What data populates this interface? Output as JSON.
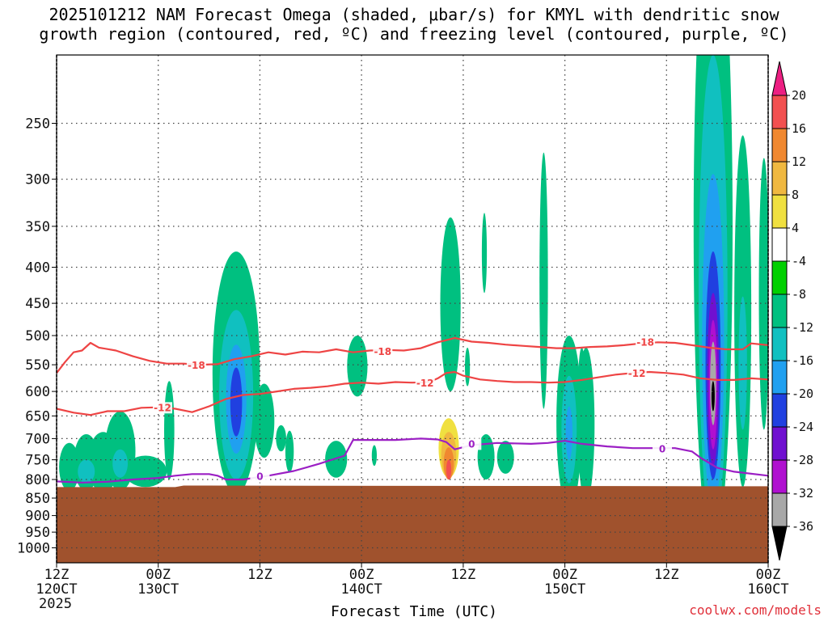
{
  "title": {
    "line1": "2025101212 NAM Forecast Omega (shaded, μbar/s) for KMYL with dendritic snow",
    "line2": "growth region (contoured, red, ºC) and freezing level (contoured, purple, ºC)"
  },
  "xlabel": "Forecast Time (UTC)",
  "credit": "coolwx.com/models",
  "colors": {
    "dgz_contour": "#ee4444",
    "freezing_contour": "#9b1fc4",
    "ground": "#a0522d"
  },
  "chart_data": {
    "type": "heatmap",
    "y_axis": {
      "quantity": "pressure (mb)",
      "scale": "log",
      "inverted": true,
      "range": [
        200,
        1050
      ],
      "ticks": [
        250,
        300,
        350,
        400,
        450,
        500,
        550,
        600,
        650,
        700,
        750,
        800,
        850,
        900,
        950,
        1000
      ],
      "grid": true
    },
    "x_axis": {
      "range_hours": [
        0,
        84
      ],
      "ticks": [
        {
          "hour": 0,
          "line1": "12Z",
          "line2": "120CT",
          "line3": "2025"
        },
        {
          "hour": 12,
          "line1": "00Z",
          "line2": "130CT",
          "line3": ""
        },
        {
          "hour": 24,
          "line1": "12Z",
          "line2": "",
          "line3": ""
        },
        {
          "hour": 36,
          "line1": "00Z",
          "line2": "140CT",
          "line3": ""
        },
        {
          "hour": 48,
          "line1": "12Z",
          "line2": "",
          "line3": ""
        },
        {
          "hour": 60,
          "line1": "00Z",
          "line2": "150CT",
          "line3": ""
        },
        {
          "hour": 72,
          "line1": "12Z",
          "line2": "",
          "line3": ""
        },
        {
          "hour": 84,
          "line1": "00Z",
          "line2": "160CT",
          "line3": ""
        }
      ],
      "grid": true
    },
    "colorbar": {
      "labels": [
        "20",
        "16",
        "12",
        "8",
        "4",
        "-4",
        "-8",
        "-12",
        "-16",
        "-20",
        "-24",
        "-28",
        "-32",
        "-36"
      ],
      "levels": [
        24,
        20,
        16,
        12,
        8,
        4,
        -4,
        -8,
        -12,
        -16,
        -20,
        -24,
        -28,
        -32,
        -36,
        -40
      ],
      "colors": [
        "#ec1f82",
        "#f25050",
        "#f08830",
        "#f0b840",
        "#f0e040",
        "#ffffff",
        "#00d000",
        "#00c080",
        "#10c0c0",
        "#20a0f0",
        "#2040e0",
        "#7010d0",
        "#b010d0",
        "#a8a8a8",
        "#000000"
      ]
    },
    "surface_pressure": [
      {
        "hour": 0,
        "p": 820
      },
      {
        "hour": 14,
        "p": 820
      },
      {
        "hour": 15,
        "p": 816
      },
      {
        "hour": 84,
        "p": 818
      }
    ],
    "contours": [
      {
        "level": "-18",
        "color": "dgz",
        "label_positions": [
          {
            "hour": 16.5,
            "p": 551
          },
          {
            "hour": 38.5,
            "p": 527
          },
          {
            "hour": 69.5,
            "p": 511
          }
        ],
        "points": [
          [
            0,
            565
          ],
          [
            1,
            545
          ],
          [
            2,
            528
          ],
          [
            3,
            525
          ],
          [
            4,
            512
          ],
          [
            5,
            520
          ],
          [
            7,
            525
          ],
          [
            9,
            535
          ],
          [
            11,
            543
          ],
          [
            13,
            548
          ],
          [
            15,
            548
          ],
          [
            17,
            550
          ],
          [
            19,
            549
          ],
          [
            21,
            540
          ],
          [
            23,
            535
          ],
          [
            25,
            528
          ],
          [
            27,
            532
          ],
          [
            29,
            527
          ],
          [
            31,
            528
          ],
          [
            33,
            523
          ],
          [
            35,
            528
          ],
          [
            37,
            525
          ],
          [
            39,
            524
          ],
          [
            41,
            525
          ],
          [
            43,
            521
          ],
          [
            45,
            511
          ],
          [
            47,
            504
          ],
          [
            49,
            510
          ],
          [
            51,
            512
          ],
          [
            53,
            515
          ],
          [
            55,
            517
          ],
          [
            57,
            519
          ],
          [
            59,
            521
          ],
          [
            61,
            521
          ],
          [
            63,
            519
          ],
          [
            65,
            518
          ],
          [
            67,
            516
          ],
          [
            69,
            513
          ],
          [
            71,
            511
          ],
          [
            73,
            512
          ],
          [
            75,
            516
          ],
          [
            77,
            520
          ],
          [
            79,
            523
          ],
          [
            81,
            523
          ],
          [
            82,
            513
          ],
          [
            84,
            516
          ]
        ]
      },
      {
        "level": "-12",
        "color": "dgz",
        "label_positions": [
          {
            "hour": 12.5,
            "p": 633
          },
          {
            "hour": 43.5,
            "p": 584
          },
          {
            "hour": 68.5,
            "p": 566
          }
        ],
        "points": [
          [
            0,
            635
          ],
          [
            2,
            643
          ],
          [
            4,
            648
          ],
          [
            6,
            640
          ],
          [
            8,
            640
          ],
          [
            10,
            633
          ],
          [
            12,
            632
          ],
          [
            14,
            635
          ],
          [
            16,
            642
          ],
          [
            18,
            630
          ],
          [
            20,
            615
          ],
          [
            22,
            607
          ],
          [
            24,
            605
          ],
          [
            26,
            600
          ],
          [
            28,
            595
          ],
          [
            30,
            593
          ],
          [
            32,
            590
          ],
          [
            34,
            585
          ],
          [
            36,
            583
          ],
          [
            38,
            585
          ],
          [
            40,
            582
          ],
          [
            42,
            583
          ],
          [
            44,
            582
          ],
          [
            45,
            575
          ],
          [
            46,
            565
          ],
          [
            47,
            563
          ],
          [
            48,
            570
          ],
          [
            50,
            577
          ],
          [
            52,
            580
          ],
          [
            54,
            582
          ],
          [
            56,
            582
          ],
          [
            58,
            583
          ],
          [
            60,
            582
          ],
          [
            62,
            578
          ],
          [
            64,
            573
          ],
          [
            66,
            568
          ],
          [
            68,
            565
          ],
          [
            70,
            563
          ],
          [
            72,
            565
          ],
          [
            74,
            568
          ],
          [
            76,
            575
          ],
          [
            78,
            578
          ],
          [
            80,
            578
          ],
          [
            82,
            575
          ],
          [
            84,
            577
          ]
        ]
      },
      {
        "level": "0",
        "color": "freezing",
        "label_positions": [
          {
            "hour": 24,
            "p": 793
          },
          {
            "hour": 49,
            "p": 713
          },
          {
            "hour": 71.5,
            "p": 725
          }
        ],
        "points": [
          [
            0,
            805
          ],
          [
            3,
            808
          ],
          [
            6,
            806
          ],
          [
            9,
            800
          ],
          [
            12,
            796
          ],
          [
            14,
            790
          ],
          [
            16,
            786
          ],
          [
            18,
            786
          ],
          [
            19,
            790
          ],
          [
            20,
            800
          ],
          [
            22,
            800
          ],
          [
            25,
            790
          ],
          [
            28,
            778
          ],
          [
            31,
            760
          ],
          [
            34,
            740
          ],
          [
            35,
            703
          ],
          [
            37,
            703
          ],
          [
            40,
            703
          ],
          [
            43,
            700
          ],
          [
            45,
            702
          ],
          [
            46,
            708
          ],
          [
            47,
            725
          ],
          [
            48,
            720
          ],
          [
            49,
            715
          ],
          [
            52,
            710
          ],
          [
            56,
            712
          ],
          [
            58,
            710
          ],
          [
            60,
            705
          ],
          [
            62,
            712
          ],
          [
            65,
            718
          ],
          [
            68,
            722
          ],
          [
            71,
            722
          ],
          [
            73,
            722
          ],
          [
            75,
            730
          ],
          [
            76,
            745
          ],
          [
            78,
            770
          ],
          [
            80,
            780
          ],
          [
            84,
            790
          ]
        ]
      }
    ],
    "omega_features": [
      {
        "value": -8,
        "hour": 1.5,
        "p": 770,
        "dh": 1.2,
        "dp": 60
      },
      {
        "value": -8,
        "hour": 3.5,
        "p": 760,
        "dh": 1.5,
        "dp": 70
      },
      {
        "value": -8,
        "hour": 5.5,
        "p": 760,
        "dh": 1.8,
        "dp": 75
      },
      {
        "value": -8,
        "hour": 7.5,
        "p": 735,
        "dh": 1.8,
        "dp": 95
      },
      {
        "value": -8,
        "hour": 10.5,
        "p": 780,
        "dh": 2.5,
        "dp": 40
      },
      {
        "value": -12,
        "hour": 3.5,
        "p": 780,
        "dh": 1.0,
        "dp": 30
      },
      {
        "value": -12,
        "hour": 7.5,
        "p": 760,
        "dh": 0.9,
        "dp": 35
      },
      {
        "value": -8,
        "hour": 13.3,
        "p": 690,
        "dh": 0.6,
        "dp": 110
      },
      {
        "value": 4,
        "hour": 16.5,
        "p": 690,
        "dh": 1.0,
        "dp": 60
      },
      {
        "value": -8,
        "hour": 21.2,
        "p": 610,
        "dh": 2.8,
        "dp": 230
      },
      {
        "value": -12,
        "hour": 21.2,
        "p": 630,
        "dh": 2.0,
        "dp": 170
      },
      {
        "value": -16,
        "hour": 21.2,
        "p": 625,
        "dh": 1.2,
        "dp": 110
      },
      {
        "value": -20,
        "hour": 21.2,
        "p": 625,
        "dh": 0.7,
        "dp": 70
      },
      {
        "value": -8,
        "hour": 24.5,
        "p": 665,
        "dh": 1.2,
        "dp": 80
      },
      {
        "value": -8,
        "hour": 26.5,
        "p": 700,
        "dh": 0.6,
        "dp": 30
      },
      {
        "value": -8,
        "hour": 27.5,
        "p": 732,
        "dh": 0.5,
        "dp": 50
      },
      {
        "value": 4,
        "hour": 30.3,
        "p": 730,
        "dh": 0.5,
        "dp": 40
      },
      {
        "value": 4,
        "hour": 24.5,
        "p": 805,
        "dh": 1.5,
        "dp": 12
      },
      {
        "value": -8,
        "hour": 33.0,
        "p": 750,
        "dh": 1.3,
        "dp": 45
      },
      {
        "value": -8,
        "hour": 35.5,
        "p": 555,
        "dh": 1.2,
        "dp": 55
      },
      {
        "value": 4,
        "hour": 36.0,
        "p": 715,
        "dh": 0.3,
        "dp": 25
      },
      {
        "value": 4,
        "hour": 38.0,
        "p": 795,
        "dh": 3.5,
        "dp": 25
      },
      {
        "value": -8,
        "hour": 37.5,
        "p": 740,
        "dh": 0.3,
        "dp": 25
      },
      {
        "value": 4,
        "hour": 41.7,
        "p": 440,
        "dh": 0.4,
        "dp": 60
      },
      {
        "value": 4,
        "hour": 44.0,
        "p": 795,
        "dh": 8.0,
        "dp": 20
      },
      {
        "value": -8,
        "hour": 46.5,
        "p": 470,
        "dh": 1.2,
        "dp": 130
      },
      {
        "value": 4,
        "hour": 46.3,
        "p": 710,
        "dh": 1.6,
        "dp": 90
      },
      {
        "value": 8,
        "hour": 46.3,
        "p": 725,
        "dh": 1.2,
        "dp": 70
      },
      {
        "value": 12,
        "hour": 46.3,
        "p": 740,
        "dh": 0.9,
        "dp": 55
      },
      {
        "value": 16,
        "hour": 46.3,
        "p": 760,
        "dh": 0.6,
        "dp": 40
      },
      {
        "value": 20,
        "hour": 46.3,
        "p": 775,
        "dh": 0.3,
        "dp": 25
      },
      {
        "value": -8,
        "hour": 48.5,
        "p": 555,
        "dh": 0.3,
        "dp": 35
      },
      {
        "value": -8,
        "hour": 50.5,
        "p": 385,
        "dh": 0.3,
        "dp": 50
      },
      {
        "value": 4,
        "hour": 46.0,
        "p": 615,
        "dh": 0.3,
        "dp": 25
      },
      {
        "value": -8,
        "hour": 50.7,
        "p": 745,
        "dh": 1.0,
        "dp": 55
      },
      {
        "value": -8,
        "hour": 53.0,
        "p": 745,
        "dh": 1.0,
        "dp": 40
      },
      {
        "value": -8,
        "hour": 57.5,
        "p": 455,
        "dh": 0.5,
        "dp": 180
      },
      {
        "value": 4,
        "hour": 58.8,
        "p": 625,
        "dh": 0.2,
        "dp": 40
      },
      {
        "value": -8,
        "hour": 60.5,
        "p": 690,
        "dh": 1.5,
        "dp": 190
      },
      {
        "value": -12,
        "hour": 60.5,
        "p": 690,
        "dh": 0.9,
        "dp": 120
      },
      {
        "value": -16,
        "hour": 60.5,
        "p": 690,
        "dh": 0.4,
        "dp": 60
      },
      {
        "value": -8,
        "hour": 62.5,
        "p": 690,
        "dh": 1.0,
        "dp": 170
      },
      {
        "value": -8,
        "hour": 62.0,
        "p": 580,
        "dh": 0.4,
        "dp": 60
      },
      {
        "value": 4,
        "hour": 70.0,
        "p": 812,
        "dh": 4.5,
        "dp": 12
      },
      {
        "value": -8,
        "hour": 77.5,
        "p": 570,
        "dh": 2.3,
        "dp": 450
      },
      {
        "value": -12,
        "hour": 77.5,
        "p": 580,
        "dh": 1.7,
        "dp": 380
      },
      {
        "value": -16,
        "hour": 77.5,
        "p": 585,
        "dh": 1.3,
        "dp": 290
      },
      {
        "value": -20,
        "hour": 77.5,
        "p": 590,
        "dh": 0.9,
        "dp": 210
      },
      {
        "value": -24,
        "hour": 77.5,
        "p": 600,
        "dh": 0.7,
        "dp": 165
      },
      {
        "value": -28,
        "hour": 77.5,
        "p": 600,
        "dh": 0.5,
        "dp": 125
      },
      {
        "value": -32,
        "hour": 77.5,
        "p": 590,
        "dh": 0.35,
        "dp": 80
      },
      {
        "value": -36,
        "hour": 77.5,
        "p": 610,
        "dh": 0.15,
        "dp": 30
      },
      {
        "value": -8,
        "hour": 81.0,
        "p": 540,
        "dh": 1.0,
        "dp": 280
      },
      {
        "value": -12,
        "hour": 81.0,
        "p": 560,
        "dh": 0.5,
        "dp": 120
      },
      {
        "value": -8,
        "hour": 83.5,
        "p": 480,
        "dh": 0.6,
        "dp": 200
      }
    ]
  }
}
